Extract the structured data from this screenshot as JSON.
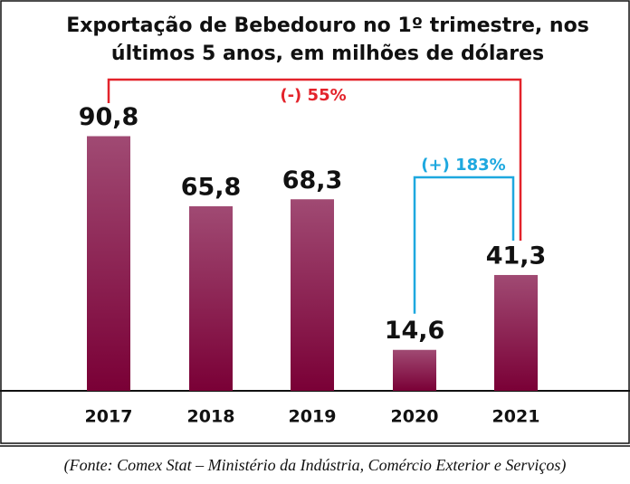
{
  "chart_data": {
    "type": "bar",
    "title": "Exportação de Bebedouro no 1º trimestre, nos",
    "subtitle": "últimos 5 anos, em milhões de dólares",
    "categories": [
      "2017",
      "2018",
      "2019",
      "2020",
      "2021"
    ],
    "values": [
      90.8,
      65.8,
      68.3,
      14.6,
      41.3
    ],
    "value_labels": [
      "90,8",
      "65,8",
      "68,3",
      "14,6",
      "41,3"
    ],
    "color": "#7d0a3e",
    "annotations": [
      {
        "text": "(-) 55%",
        "color": "#e3232b"
      },
      {
        "text": "(+) 183%",
        "color": "#1ea8df"
      }
    ],
    "source": "(Fonte: Comex Stat – Ministério da Indústria, Comércio Exterior e Serviços)"
  }
}
